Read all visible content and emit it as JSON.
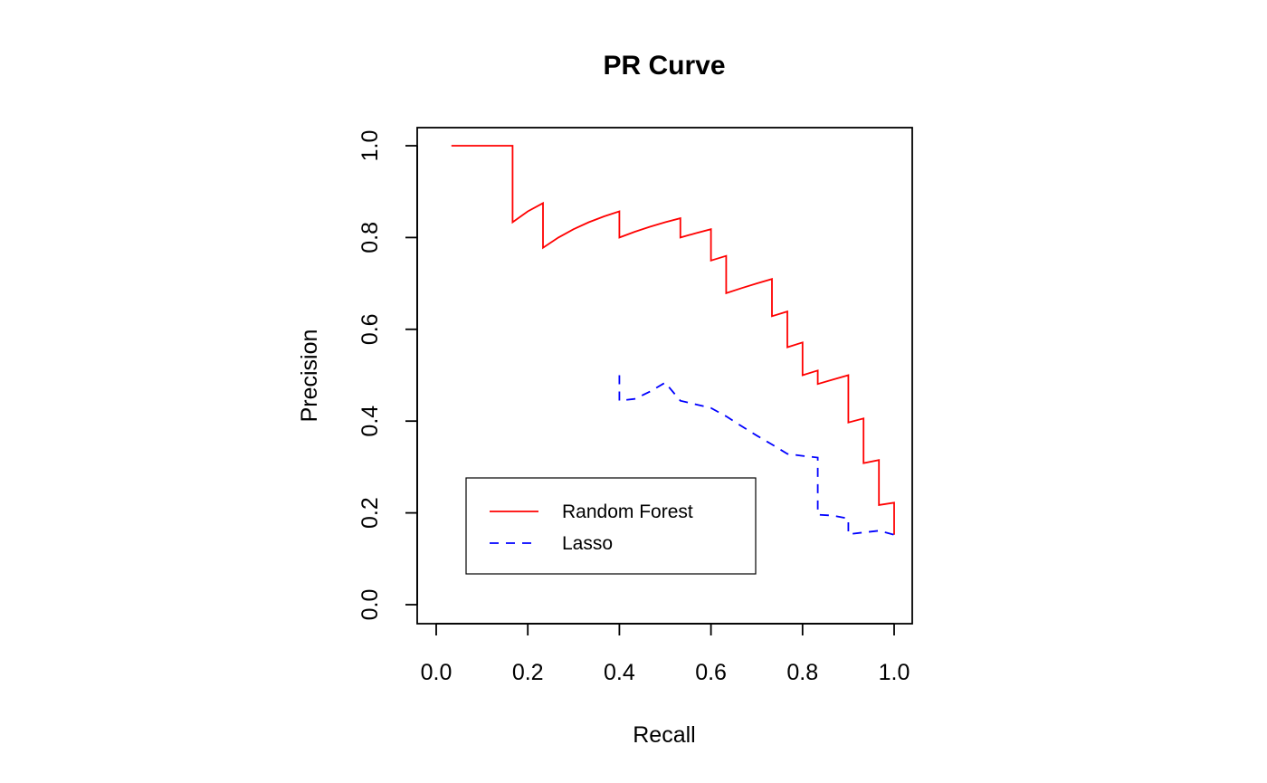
{
  "chart_data": {
    "type": "line",
    "title": "PR Curve",
    "xlabel": "Recall",
    "ylabel": "Precision",
    "xlim": [
      0,
      1
    ],
    "ylim": [
      0,
      1
    ],
    "xticks": [
      0,
      0.2,
      0.4,
      0.6,
      0.8,
      1
    ],
    "yticks": [
      0,
      0.2,
      0.4,
      0.6,
      0.8,
      1
    ],
    "xtick_labels": [
      "0.0",
      "0.2",
      "0.4",
      "0.6",
      "0.8",
      "1.0"
    ],
    "ytick_labels": [
      "0.0",
      "0.2",
      "0.4",
      "0.6",
      "0.8",
      "1.0"
    ],
    "legend": {
      "position": "bottom-left"
    },
    "series": [
      {
        "name": "Random Forest",
        "color": "#ff0000",
        "style": "solid",
        "x": [
          0.0333,
          0.1667,
          0.1667,
          0.2,
          0.2333,
          0.2333,
          0.2667,
          0.3,
          0.3333,
          0.3667,
          0.4,
          0.4,
          0.4333,
          0.4667,
          0.5,
          0.5333,
          0.5333,
          0.5667,
          0.6,
          0.6,
          0.6333,
          0.6333,
          0.6667,
          0.7,
          0.7333,
          0.7333,
          0.7667,
          0.7667,
          0.8,
          0.8,
          0.8333,
          0.8333,
          0.8667,
          0.9,
          0.9,
          0.9333,
          0.9333,
          0.9667,
          0.9667,
          1.0,
          1.0
        ],
        "y": [
          1.0,
          1.0,
          0.8333,
          0.8571,
          0.875,
          0.7778,
          0.8,
          0.8182,
          0.8333,
          0.8462,
          0.8571,
          0.8,
          0.8125,
          0.8235,
          0.8333,
          0.8421,
          0.8,
          0.8095,
          0.8182,
          0.75,
          0.76,
          0.6786,
          0.6897,
          0.7,
          0.7097,
          0.6286,
          0.6389,
          0.561,
          0.5714,
          0.5,
          0.5102,
          0.4808,
          0.4906,
          0.5,
          0.3971,
          0.4058,
          0.3085,
          0.3152,
          0.2172,
          0.2222,
          0.1523
        ]
      },
      {
        "name": "Lasso",
        "color": "#0000ff",
        "style": "dashed",
        "x": [
          0.4,
          0.4,
          0.4333,
          0.4667,
          0.5,
          0.5333,
          0.6,
          0.6333,
          0.6667,
          0.7,
          0.7333,
          0.7667,
          0.8,
          0.8333,
          0.8333,
          0.8667,
          0.9,
          0.9,
          0.9333,
          0.9667,
          1.0
        ],
        "y": [
          0.5,
          0.4444,
          0.4483,
          0.4643,
          0.4839,
          0.4444,
          0.4286,
          0.4105,
          0.3889,
          0.3684,
          0.3492,
          0.3286,
          0.3243,
          0.3205,
          0.1961,
          0.194,
          0.1875,
          0.1535,
          0.1573,
          0.1611,
          0.1523
        ]
      }
    ]
  }
}
